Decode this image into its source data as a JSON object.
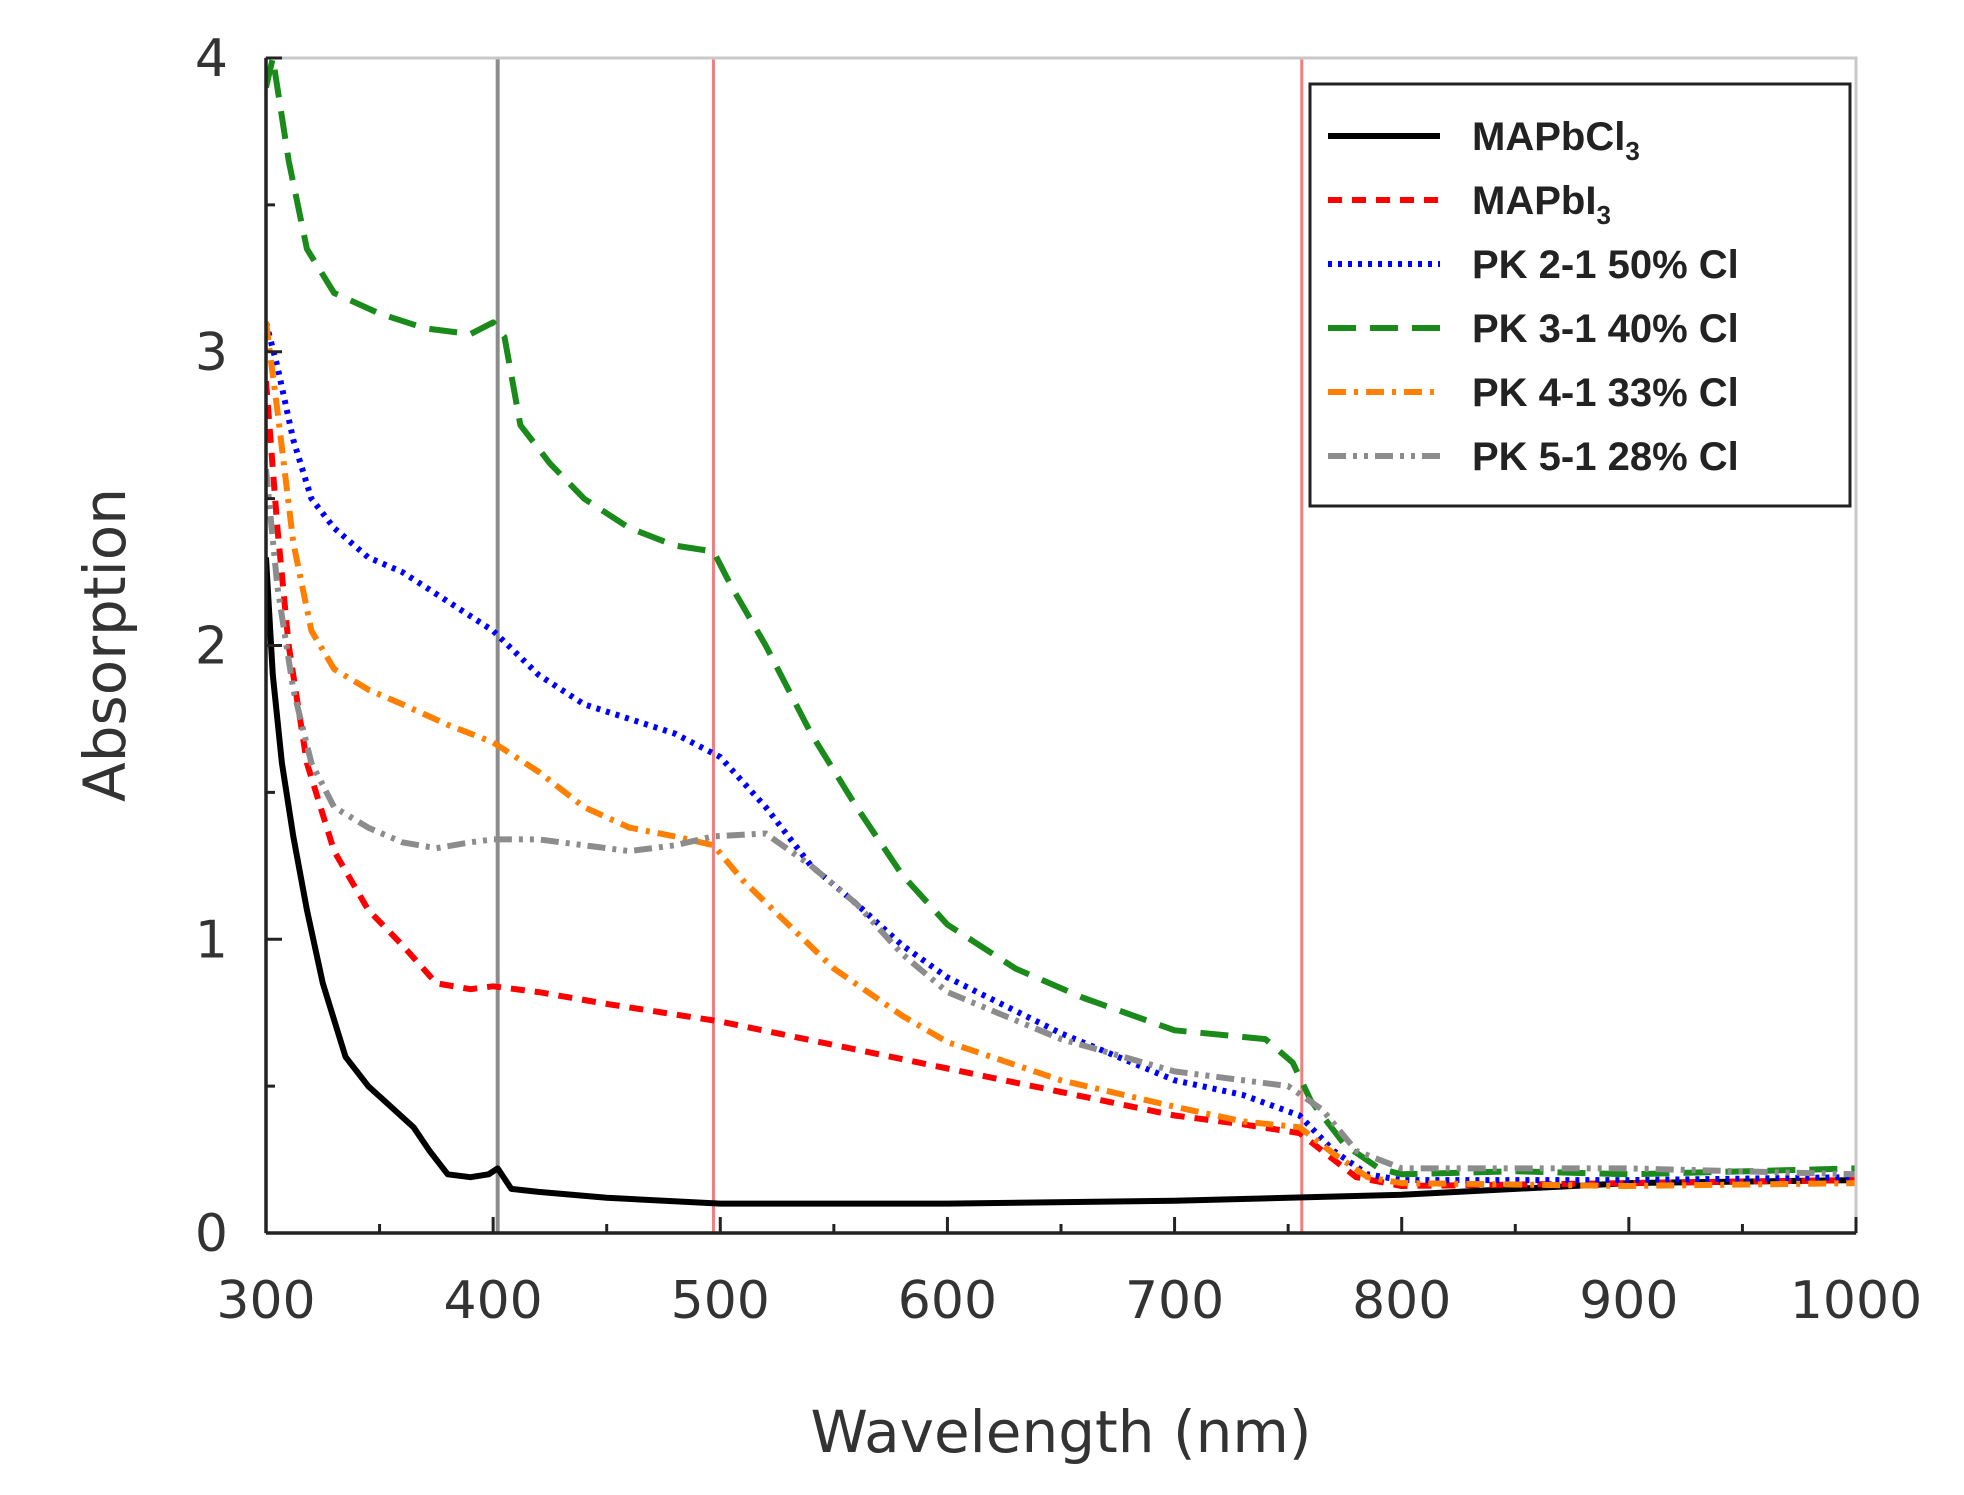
{
  "chart_data": {
    "type": "line",
    "title": "",
    "xlabel": "Wavelength (nm)",
    "ylabel": "Absorption",
    "xlim": [
      300,
      1000
    ],
    "ylim": [
      0,
      4
    ],
    "xticks": [
      300,
      400,
      500,
      600,
      700,
      800,
      900,
      1000
    ],
    "yticks": [
      0,
      1,
      2,
      3,
      4
    ],
    "legend_position": "top-right",
    "grid": false,
    "reference_lines": [
      {
        "x": 402,
        "color": "#8c8c8c"
      },
      {
        "x": 497,
        "color": "#f08080"
      },
      {
        "x": 756,
        "color": "#f08080"
      }
    ],
    "series": [
      {
        "name": "MAPbCl",
        "sub": "3",
        "color": "#000000",
        "dash": "solid",
        "points": [
          [
            300,
            2.3
          ],
          [
            303,
            1.9
          ],
          [
            307,
            1.6
          ],
          [
            312,
            1.35
          ],
          [
            318,
            1.1
          ],
          [
            325,
            0.85
          ],
          [
            335,
            0.6
          ],
          [
            345,
            0.5
          ],
          [
            355,
            0.43
          ],
          [
            365,
            0.36
          ],
          [
            372,
            0.28
          ],
          [
            380,
            0.2
          ],
          [
            390,
            0.19
          ],
          [
            398,
            0.2
          ],
          [
            402,
            0.22
          ],
          [
            408,
            0.15
          ],
          [
            420,
            0.14
          ],
          [
            450,
            0.12
          ],
          [
            500,
            0.1
          ],
          [
            600,
            0.1
          ],
          [
            700,
            0.11
          ],
          [
            750,
            0.12
          ],
          [
            800,
            0.13
          ],
          [
            850,
            0.15
          ],
          [
            900,
            0.17
          ],
          [
            1000,
            0.18
          ]
        ]
      },
      {
        "name": "MAPbI",
        "sub": "3",
        "color": "#ff0000",
        "dash": "short-dash",
        "points": [
          [
            300,
            2.9
          ],
          [
            305,
            2.4
          ],
          [
            310,
            2.0
          ],
          [
            318,
            1.6
          ],
          [
            330,
            1.3
          ],
          [
            345,
            1.1
          ],
          [
            360,
            0.98
          ],
          [
            375,
            0.85
          ],
          [
            390,
            0.83
          ],
          [
            400,
            0.84
          ],
          [
            420,
            0.82
          ],
          [
            450,
            0.78
          ],
          [
            500,
            0.72
          ],
          [
            550,
            0.64
          ],
          [
            600,
            0.56
          ],
          [
            650,
            0.48
          ],
          [
            700,
            0.4
          ],
          [
            730,
            0.37
          ],
          [
            755,
            0.34
          ],
          [
            770,
            0.25
          ],
          [
            780,
            0.19
          ],
          [
            800,
            0.16
          ],
          [
            900,
            0.17
          ],
          [
            1000,
            0.18
          ]
        ]
      },
      {
        "name": "PK 2-1 50% Cl",
        "color": "#0000ff",
        "dash": "dotted",
        "points": [
          [
            300,
            3.1
          ],
          [
            305,
            2.95
          ],
          [
            312,
            2.7
          ],
          [
            320,
            2.5
          ],
          [
            330,
            2.4
          ],
          [
            345,
            2.3
          ],
          [
            360,
            2.25
          ],
          [
            380,
            2.15
          ],
          [
            400,
            2.05
          ],
          [
            420,
            1.9
          ],
          [
            440,
            1.8
          ],
          [
            460,
            1.75
          ],
          [
            480,
            1.7
          ],
          [
            500,
            1.62
          ],
          [
            520,
            1.45
          ],
          [
            540,
            1.25
          ],
          [
            560,
            1.12
          ],
          [
            580,
            0.98
          ],
          [
            600,
            0.87
          ],
          [
            650,
            0.68
          ],
          [
            700,
            0.52
          ],
          [
            730,
            0.47
          ],
          [
            755,
            0.4
          ],
          [
            770,
            0.28
          ],
          [
            785,
            0.2
          ],
          [
            800,
            0.18
          ],
          [
            900,
            0.18
          ],
          [
            1000,
            0.19
          ]
        ]
      },
      {
        "name": "PK 3-1 40% Cl",
        "color": "#1a8a1a",
        "dash": "long-dash",
        "points": [
          [
            300,
            3.9
          ],
          [
            303,
            4.0
          ],
          [
            310,
            3.65
          ],
          [
            318,
            3.35
          ],
          [
            330,
            3.2
          ],
          [
            350,
            3.13
          ],
          [
            370,
            3.08
          ],
          [
            390,
            3.06
          ],
          [
            400,
            3.1
          ],
          [
            405,
            3.05
          ],
          [
            412,
            2.75
          ],
          [
            425,
            2.62
          ],
          [
            440,
            2.5
          ],
          [
            460,
            2.4
          ],
          [
            480,
            2.34
          ],
          [
            497,
            2.32
          ],
          [
            505,
            2.2
          ],
          [
            520,
            2.0
          ],
          [
            540,
            1.7
          ],
          [
            560,
            1.45
          ],
          [
            580,
            1.22
          ],
          [
            600,
            1.05
          ],
          [
            630,
            0.9
          ],
          [
            660,
            0.8
          ],
          [
            700,
            0.69
          ],
          [
            740,
            0.66
          ],
          [
            752,
            0.58
          ],
          [
            760,
            0.45
          ],
          [
            775,
            0.3
          ],
          [
            790,
            0.22
          ],
          [
            800,
            0.2
          ],
          [
            850,
            0.21
          ],
          [
            900,
            0.2
          ],
          [
            1000,
            0.22
          ]
        ]
      },
      {
        "name": "PK 4-1 33% Cl",
        "color": "#ff7f00",
        "dash": "dash-dot",
        "points": [
          [
            300,
            3.1
          ],
          [
            305,
            2.8
          ],
          [
            312,
            2.35
          ],
          [
            320,
            2.05
          ],
          [
            330,
            1.92
          ],
          [
            345,
            1.85
          ],
          [
            360,
            1.8
          ],
          [
            380,
            1.73
          ],
          [
            400,
            1.67
          ],
          [
            420,
            1.57
          ],
          [
            440,
            1.45
          ],
          [
            460,
            1.38
          ],
          [
            480,
            1.35
          ],
          [
            497,
            1.32
          ],
          [
            510,
            1.2
          ],
          [
            530,
            1.05
          ],
          [
            550,
            0.9
          ],
          [
            580,
            0.74
          ],
          [
            600,
            0.65
          ],
          [
            650,
            0.52
          ],
          [
            700,
            0.43
          ],
          [
            730,
            0.38
          ],
          [
            755,
            0.36
          ],
          [
            770,
            0.27
          ],
          [
            785,
            0.19
          ],
          [
            800,
            0.17
          ],
          [
            900,
            0.16
          ],
          [
            1000,
            0.17
          ]
        ]
      },
      {
        "name": "PK 5-1 28% Cl",
        "color": "#8c8c8c",
        "dash": "dash-dot-dot",
        "points": [
          [
            300,
            2.6
          ],
          [
            305,
            2.2
          ],
          [
            312,
            1.85
          ],
          [
            320,
            1.6
          ],
          [
            330,
            1.45
          ],
          [
            345,
            1.38
          ],
          [
            360,
            1.33
          ],
          [
            375,
            1.31
          ],
          [
            390,
            1.33
          ],
          [
            400,
            1.34
          ],
          [
            420,
            1.34
          ],
          [
            440,
            1.32
          ],
          [
            460,
            1.3
          ],
          [
            480,
            1.32
          ],
          [
            497,
            1.35
          ],
          [
            520,
            1.36
          ],
          [
            540,
            1.25
          ],
          [
            560,
            1.12
          ],
          [
            580,
            0.95
          ],
          [
            600,
            0.82
          ],
          [
            650,
            0.66
          ],
          [
            700,
            0.55
          ],
          [
            750,
            0.5
          ],
          [
            765,
            0.42
          ],
          [
            780,
            0.28
          ],
          [
            800,
            0.22
          ],
          [
            900,
            0.22
          ],
          [
            1000,
            0.2
          ]
        ]
      }
    ]
  }
}
